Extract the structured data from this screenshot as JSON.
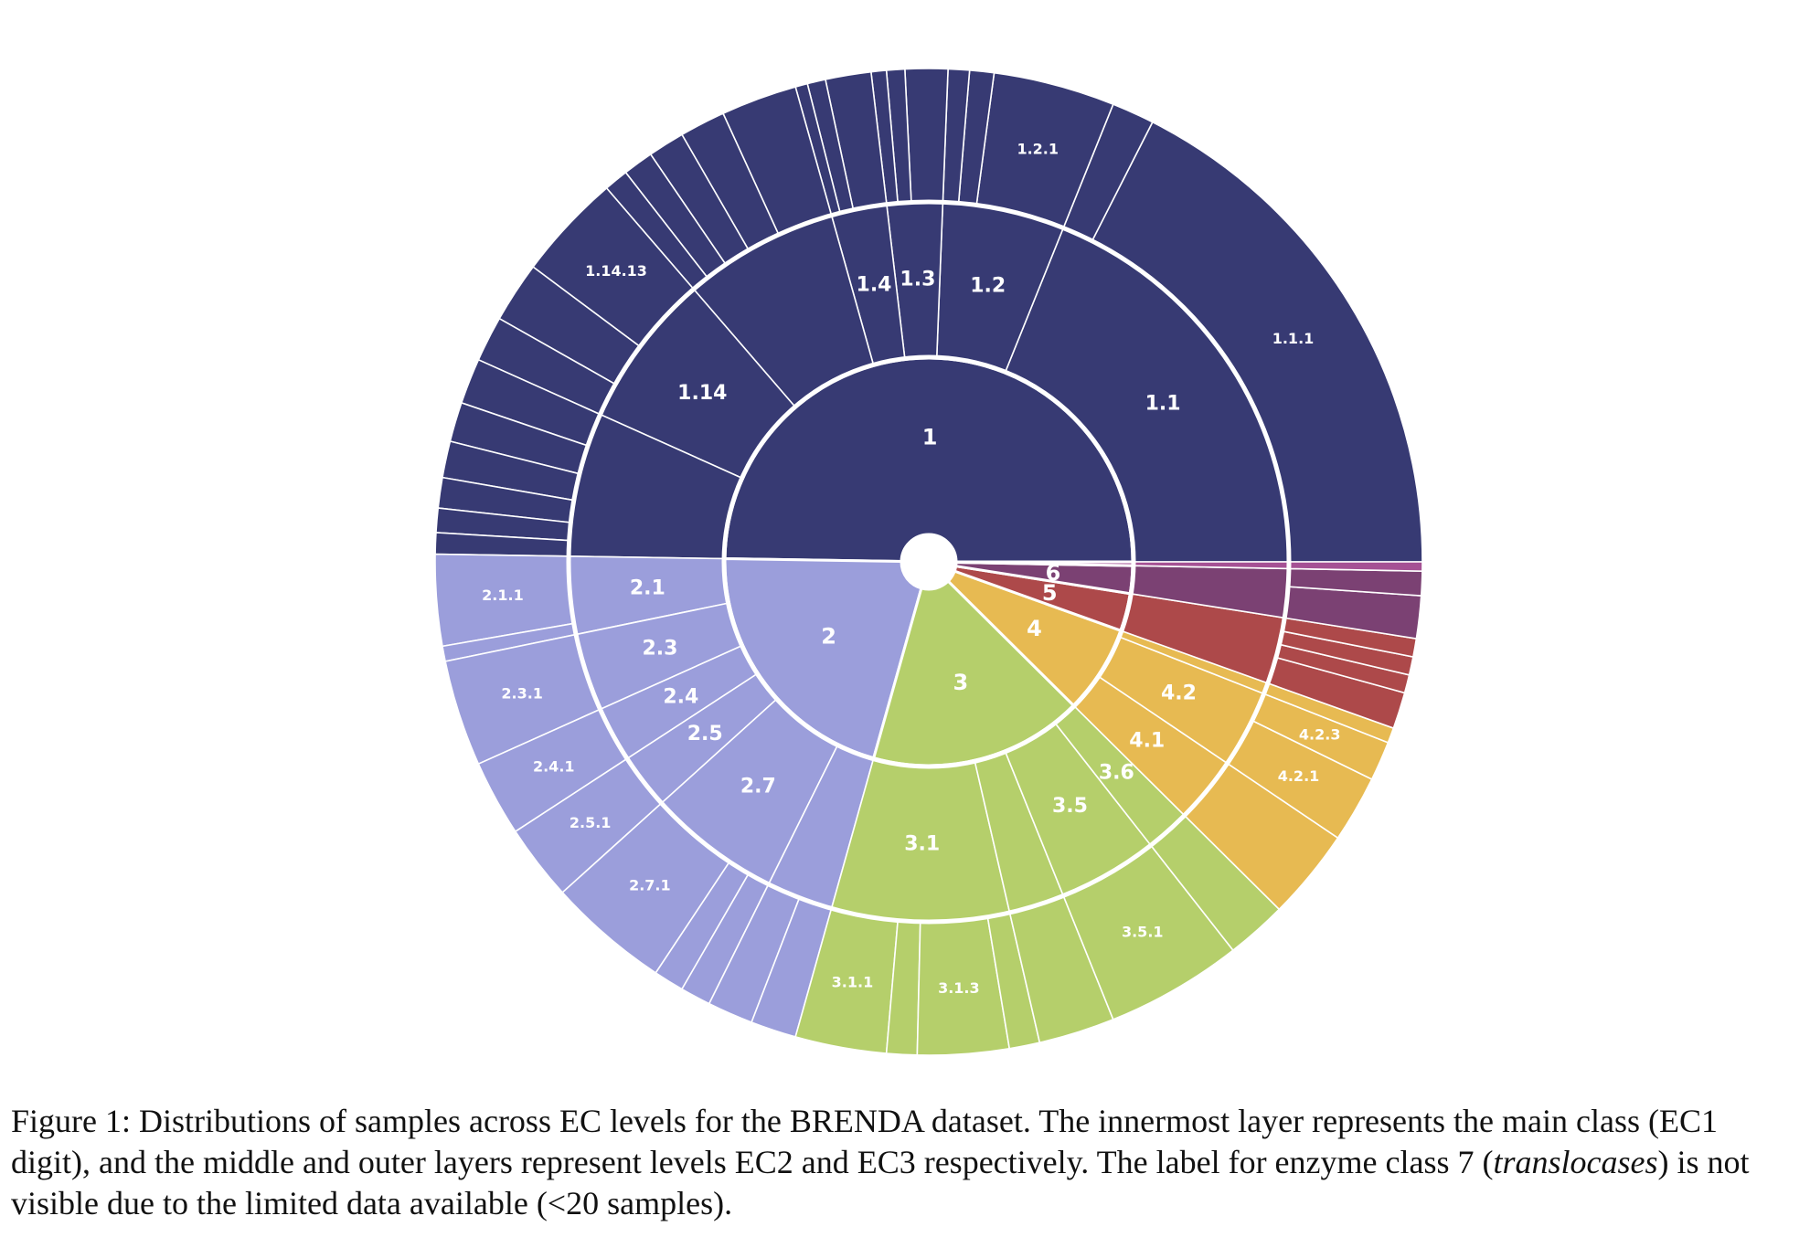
{
  "chart_data": {
    "type": "sunburst",
    "title": "",
    "levels": [
      "EC1",
      "EC2",
      "EC3"
    ],
    "colors": {
      "1": "#373a73",
      "2": "#9b9edb",
      "3": "#b5cf6b",
      "4": "#e7ba52",
      "5": "#ad494a",
      "6": "#7b4173",
      "7": "#a55194"
    },
    "start_angle_deg": 0,
    "direction": "counterclockwise",
    "classes": [
      {
        "label": "1",
        "value": 50,
        "children": [
          {
            "label": "1.1",
            "value": 19,
            "children": [
              {
                "label": "1.1.1",
                "value": 17.6
              },
              {
                "label": "",
                "value": 1.4
              }
            ]
          },
          {
            "label": "1.2",
            "value": 5.5,
            "children": [
              {
                "label": "1.2.1",
                "value": 4.0
              },
              {
                "label": "",
                "value": 0.8
              },
              {
                "label": "",
                "value": 0.7
              }
            ]
          },
          {
            "label": "1.3",
            "value": 2.5,
            "children": [
              {
                "label": "",
                "value": 1.4
              },
              {
                "label": "",
                "value": 0.6
              },
              {
                "label": "",
                "value": 0.5
              }
            ]
          },
          {
            "label": "1.4",
            "value": 2.5,
            "children": [
              {
                "label": "",
                "value": 1.5
              },
              {
                "label": "",
                "value": 0.6
              },
              {
                "label": "",
                "value": 0.4
              }
            ]
          },
          {
            "label": "",
            "value": 7,
            "children": [
              {
                "label": "",
                "value": 2.5
              },
              {
                "label": "",
                "value": 1.5
              },
              {
                "label": "",
                "value": 1.2
              },
              {
                "label": "",
                "value": 1.0
              },
              {
                "label": "",
                "value": 0.8
              }
            ]
          },
          {
            "label": "1.14",
            "value": 7,
            "children": [
              {
                "label": "1.14.13",
                "value": 3.5
              },
              {
                "label": "",
                "value": 2.0
              },
              {
                "label": "",
                "value": 1.5
              }
            ]
          },
          {
            "label": "",
            "value": 6.5,
            "children": [
              {
                "label": "",
                "value": 1.5
              },
              {
                "label": "",
                "value": 1.3
              },
              {
                "label": "",
                "value": 1.2
              },
              {
                "label": "",
                "value": 1.0
              },
              {
                "label": "",
                "value": 0.8
              },
              {
                "label": "",
                "value": 0.7
              }
            ]
          }
        ]
      },
      {
        "label": "2",
        "value": 21,
        "children": [
          {
            "label": "2.1",
            "value": 3.5,
            "children": [
              {
                "label": "2.1.1",
                "value": 3.0
              },
              {
                "label": "",
                "value": 0.5
              }
            ]
          },
          {
            "label": "2.3",
            "value": 3.5,
            "children": [
              {
                "label": "2.3.1",
                "value": 3.5
              }
            ]
          },
          {
            "label": "2.4",
            "value": 2.5,
            "children": [
              {
                "label": "2.4.1",
                "value": 2.5
              }
            ]
          },
          {
            "label": "2.5",
            "value": 2.5,
            "children": [
              {
                "label": "2.5.1",
                "value": 2.5
              }
            ]
          },
          {
            "label": "2.7",
            "value": 6,
            "children": [
              {
                "label": "2.7.1",
                "value": 4.0
              },
              {
                "label": "",
                "value": 1.0
              },
              {
                "label": "",
                "value": 1.0
              }
            ]
          },
          {
            "label": "",
            "value": 3,
            "children": [
              {
                "label": "",
                "value": 1.5
              },
              {
                "label": "",
                "value": 1.5
              }
            ]
          }
        ]
      },
      {
        "label": "3",
        "value": 17,
        "children": [
          {
            "label": "3.1",
            "value": 8,
            "children": [
              {
                "label": "3.1.1",
                "value": 3.0
              },
              {
                "label": "",
                "value": 1.0
              },
              {
                "label": "3.1.3",
                "value": 3.0
              },
              {
                "label": "",
                "value": 1.0
              }
            ]
          },
          {
            "label": "",
            "value": 2.5,
            "children": [
              {
                "label": "",
                "value": 2.5
              }
            ]
          },
          {
            "label": "3.5",
            "value": 4.5,
            "children": [
              {
                "label": "3.5.1",
                "value": 4.5
              }
            ]
          },
          {
            "label": "3.6",
            "value": 2,
            "children": [
              {
                "label": "",
                "value": 2.0
              }
            ]
          }
        ]
      },
      {
        "label": "4",
        "value": 7,
        "children": [
          {
            "label": "4.1",
            "value": 3,
            "children": [
              {
                "label": "",
                "value": 3.0
              }
            ]
          },
          {
            "label": "4.2",
            "value": 3.5,
            "children": [
              {
                "label": "4.2.1",
                "value": 2.2
              },
              {
                "label": "4.2.3",
                "value": 1.3
              }
            ]
          },
          {
            "label": "",
            "value": 0.5,
            "children": [
              {
                "label": "",
                "value": 0.5
              }
            ]
          }
        ]
      },
      {
        "label": "5",
        "value": 3,
        "children": [
          {
            "label": "",
            "value": 3,
            "children": [
              {
                "label": "",
                "value": 1.2
              },
              {
                "label": "",
                "value": 0.6
              },
              {
                "label": "",
                "value": 0.6
              },
              {
                "label": "",
                "value": 0.6
              }
            ]
          }
        ]
      },
      {
        "label": "6",
        "value": 2.2,
        "children": [
          {
            "label": "",
            "value": 2.2,
            "children": [
              {
                "label": "",
                "value": 1.4
              },
              {
                "label": "",
                "value": 0.8
              }
            ]
          }
        ]
      },
      {
        "label": "",
        "value": 0.3,
        "children": [
          {
            "label": "",
            "value": 0.3,
            "children": [
              {
                "label": "",
                "value": 0.3
              }
            ]
          }
        ]
      }
    ]
  },
  "caption": {
    "figure_label": "Figure 1:",
    "text_before_italic": "Distributions of samples across EC levels for the BRENDA dataset. The innermost layer represents the main class (EC1 digit), and the middle and outer layers represent levels EC2 and EC3 respectively. The label for enzyme class 7 (",
    "italic": "translocases",
    "text_after_italic": ") is not visible due to the limited data available (<20 samples)."
  }
}
